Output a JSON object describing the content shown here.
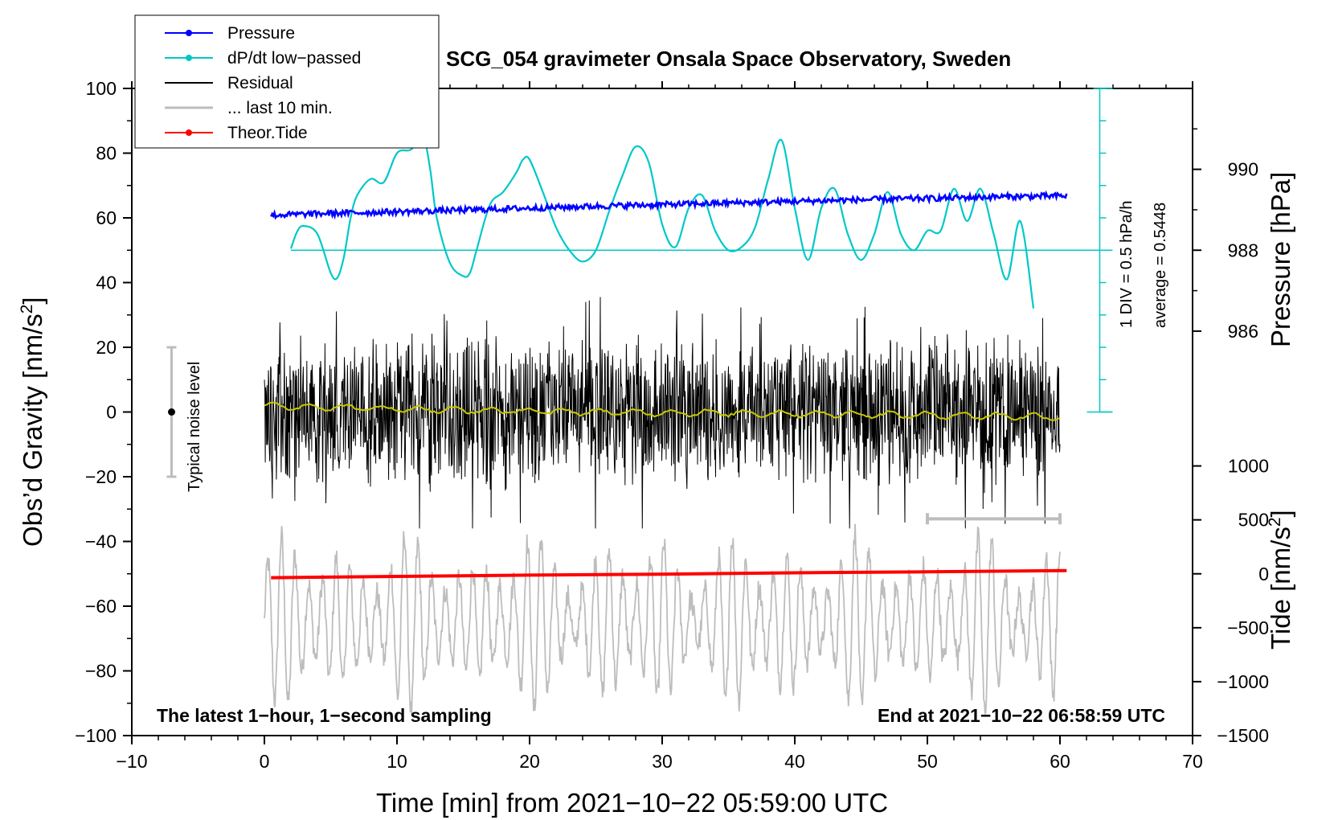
{
  "chart_data": {
    "type": "line",
    "title": "SCG_054 gravimeter Onsala Space Observatory, Sweden",
    "xlabel": "Time [min] from 2021−10−22 05:59:00 UTC",
    "ylabel": "Obs’d Gravity [nm/s",
    "ylabel_sup": "2",
    "ylabel_close": "]",
    "y2label": "Pressure [hPa]",
    "y3label": "Tide [nm/s",
    "y3label_sup": "2",
    "y3label_close": "]",
    "xlim": [
      -10,
      70
    ],
    "ylim": [
      -100,
      100
    ],
    "xticks": [
      -10,
      0,
      10,
      20,
      30,
      40,
      50,
      60,
      70
    ],
    "xtick_labels": [
      "−10",
      "0",
      "10",
      "20",
      "30",
      "40",
      "50",
      "60",
      "70"
    ],
    "yticks": [
      -100,
      -80,
      -60,
      -40,
      -20,
      0,
      20,
      40,
      60,
      80,
      100
    ],
    "ytick_labels": [
      "−100",
      "−80",
      "−60",
      "−40",
      "−20",
      "0",
      "20",
      "40",
      "60",
      "80",
      "100"
    ],
    "pressure_axis": {
      "ticks": [
        986,
        988,
        990
      ],
      "tick_labels": [
        "986",
        "988",
        "990"
      ],
      "gravity_equiv": [
        25,
        50,
        75
      ]
    },
    "tide_axis": {
      "ticks": [
        -1500,
        -1000,
        -500,
        0,
        500,
        1000
      ],
      "tick_labels": [
        "−1500",
        "−1000",
        "−500",
        "0",
        "500",
        "1000"
      ],
      "gravity_equiv": [
        -100,
        -83.33,
        -66.67,
        -50,
        -33.33,
        -16.67
      ]
    },
    "legend": [
      {
        "label": "Pressure",
        "color": "#0000ff",
        "marker": true
      },
      {
        "label": "dP/dt low−passed",
        "color": "#00c8c8",
        "marker": true
      },
      {
        "label": "Residual",
        "color": "#000000",
        "marker": false
      },
      {
        "label": "... last 10 min.",
        "color": "#bdbdbd",
        "marker": false
      },
      {
        "label": "Theor.Tide",
        "color": "#ff0000",
        "marker": true
      }
    ],
    "series": [
      {
        "name": "Pressure",
        "color": "#0000ff",
        "x": [
          0.5,
          5,
          10,
          15,
          20,
          25,
          30,
          35,
          40,
          45,
          50,
          55,
          60.5
        ],
        "y": [
          60.8,
          61.4,
          61.9,
          62.4,
          63.0,
          63.6,
          64.1,
          64.6,
          65.1,
          65.6,
          66.0,
          66.5,
          66.8
        ]
      },
      {
        "name": "dP/dt low−passed",
        "color": "#00c8c8",
        "x": [
          2,
          2.5,
          3,
          4,
          5,
          5.5,
          6,
          6.5,
          7,
          8,
          9,
          10,
          11,
          12,
          12.5,
          13,
          14,
          15,
          15.5,
          16,
          17,
          18,
          19,
          19.5,
          20,
          21,
          22,
          23,
          24,
          25,
          26,
          27,
          28,
          29,
          30,
          31,
          32,
          33,
          34,
          35,
          36,
          37,
          38,
          39,
          40,
          41,
          42,
          43,
          44,
          45,
          46,
          47,
          48,
          49,
          50,
          51,
          52,
          53,
          54,
          55,
          56,
          57,
          58
        ],
        "y": [
          50.5,
          56,
          57.5,
          55,
          43,
          41.5,
          48,
          60,
          67,
          72,
          71,
          80,
          81,
          84,
          75,
          60,
          46,
          42,
          43,
          50,
          64,
          68,
          74,
          78,
          78,
          68,
          57,
          50,
          46.5,
          50,
          62,
          73,
          82,
          77,
          58,
          51,
          63,
          67,
          56,
          50,
          51,
          57,
          72,
          84,
          63,
          47,
          63,
          69,
          55,
          47,
          55,
          68,
          55,
          50,
          56,
          56,
          69,
          59,
          69,
          55,
          41,
          59,
          32
        ]
      },
      {
        "name": "Residual",
        "color": "#000000",
        "x_range": [
          0,
          60
        ],
        "amplitude": 40
      },
      {
        "name": "Residual smoothed",
        "color": "#c8c800",
        "x": [
          0,
          5,
          10,
          15,
          20,
          25,
          30,
          35,
          40,
          45,
          50,
          55,
          60
        ],
        "y": [
          1.8,
          1.5,
          1.0,
          0.5,
          0.3,
          0.0,
          -0.2,
          -0.3,
          -0.5,
          -0.7,
          -1.0,
          -1.2,
          -1.5
        ]
      },
      {
        "name": "... last 10 min.",
        "color": "#bdbdbd",
        "x_range": [
          0,
          60
        ],
        "center": -65,
        "amplitude": 28
      },
      {
        "name": "Theor.Tide",
        "color": "#ff0000",
        "x": [
          0.5,
          10,
          20,
          30,
          40,
          50,
          60.5
        ],
        "y": [
          -51.2,
          -50.8,
          -50.4,
          -50.1,
          -49.7,
          -49.4,
          -49.0
        ]
      }
    ],
    "pressure_scale_bar": {
      "label": "1 DIV = 0.5 hPa/h",
      "x": 63,
      "y_range": [
        0,
        100
      ]
    },
    "average_label": "average = 0.5448",
    "noise_bar": {
      "label": "Typical noise level",
      "x": -7,
      "y_range": [
        -20,
        20
      ],
      "center": 0
    },
    "window_bar": {
      "x_range": [
        50,
        60
      ],
      "y": -33
    },
    "annotation_left": "The latest 1−hour, 1−second sampling",
    "annotation_right": "End at 2021−10−22 06:58:59 UTC"
  }
}
